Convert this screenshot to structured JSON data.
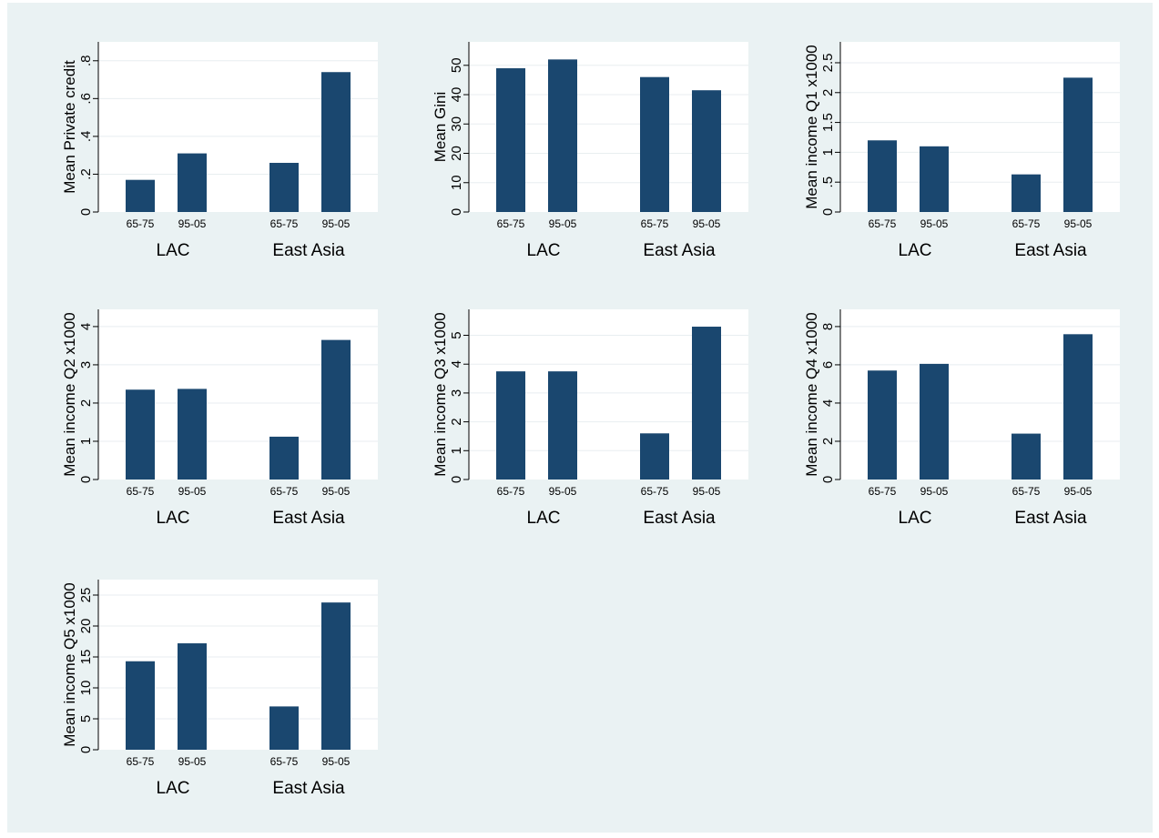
{
  "figure": {
    "background": "#eaf2f3",
    "bar_color": "#1a476f"
  },
  "chart_data": [
    {
      "type": "bar",
      "ylabel": "Mean Private credit",
      "groups": [
        "LAC",
        "East Asia"
      ],
      "categories": [
        "65-75",
        "95-05"
      ],
      "values": [
        [
          0.17,
          0.31
        ],
        [
          0.26,
          0.74
        ]
      ],
      "ylim": [
        0,
        0.9
      ],
      "yticks": [
        0,
        0.2,
        0.4,
        0.6,
        0.8
      ],
      "yticklabels": [
        "0",
        ".2",
        ".4",
        ".6",
        ".8"
      ],
      "grid": true
    },
    {
      "type": "bar",
      "ylabel": "Mean Gini",
      "groups": [
        "LAC",
        "East Asia"
      ],
      "categories": [
        "65-75",
        "95-05"
      ],
      "values": [
        [
          49,
          52
        ],
        [
          46,
          41.5
        ]
      ],
      "ylim": [
        0,
        58
      ],
      "yticks": [
        0,
        10,
        20,
        30,
        40,
        50
      ],
      "yticklabels": [
        "0",
        "10",
        "20",
        "30",
        "40",
        "50"
      ],
      "grid": true
    },
    {
      "type": "bar",
      "ylabel": "Mean income Q1 x1000",
      "groups": [
        "LAC",
        "East Asia"
      ],
      "categories": [
        "65-75",
        "95-05"
      ],
      "values": [
        [
          1.2,
          1.1
        ],
        [
          0.63,
          2.25
        ]
      ],
      "ylim": [
        0,
        2.85
      ],
      "yticks": [
        0,
        0.5,
        1,
        1.5,
        2,
        2.5
      ],
      "yticklabels": [
        "0",
        ".5",
        "1",
        "1.5",
        "2",
        "2.5"
      ],
      "grid": true
    },
    {
      "type": "bar",
      "ylabel": "Mean income Q2 x1000",
      "groups": [
        "LAC",
        "East Asia"
      ],
      "categories": [
        "65-75",
        "95-05"
      ],
      "values": [
        [
          2.35,
          2.37
        ],
        [
          1.12,
          3.65
        ]
      ],
      "ylim": [
        0,
        4.45
      ],
      "yticks": [
        0,
        1,
        2,
        3,
        4
      ],
      "yticklabels": [
        "0",
        "1",
        "2",
        "3",
        "4"
      ],
      "grid": true
    },
    {
      "type": "bar",
      "ylabel": "Mean income Q3 x1000",
      "groups": [
        "LAC",
        "East Asia"
      ],
      "categories": [
        "65-75",
        "95-05"
      ],
      "values": [
        [
          3.75,
          3.75
        ],
        [
          1.6,
          5.3
        ]
      ],
      "ylim": [
        0,
        5.9
      ],
      "yticks": [
        0,
        1,
        2,
        3,
        4,
        5
      ],
      "yticklabels": [
        "0",
        "1",
        "2",
        "3",
        "4",
        "5"
      ],
      "grid": true
    },
    {
      "type": "bar",
      "ylabel": "Mean income Q4 x1000",
      "groups": [
        "LAC",
        "East Asia"
      ],
      "categories": [
        "65-75",
        "95-05"
      ],
      "values": [
        [
          5.7,
          6.05
        ],
        [
          2.4,
          7.6
        ]
      ],
      "ylim": [
        0,
        8.9
      ],
      "yticks": [
        0,
        2,
        4,
        6,
        8
      ],
      "yticklabels": [
        "0",
        "2",
        "4",
        "6",
        "8"
      ],
      "grid": true
    },
    {
      "type": "bar",
      "ylabel": "Mean income Q5 x1000",
      "groups": [
        "LAC",
        "East Asia"
      ],
      "categories": [
        "65-75",
        "95-05"
      ],
      "values": [
        [
          14.3,
          17.2
        ],
        [
          7,
          23.8
        ]
      ],
      "ylim": [
        0,
        27.5
      ],
      "yticks": [
        0,
        5,
        10,
        15,
        20,
        25
      ],
      "yticklabels": [
        "0",
        "5",
        "10",
        "15",
        "20",
        "25"
      ],
      "grid": true
    }
  ]
}
